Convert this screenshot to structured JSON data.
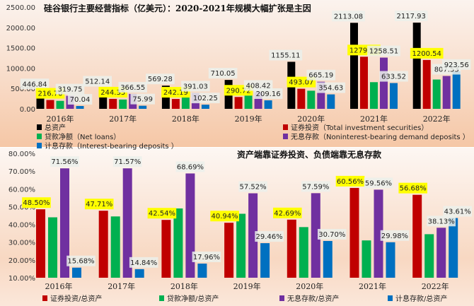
{
  "chart_data": [
    {
      "type": "bar",
      "title": "硅谷银行主要经营指标（亿美元）：2020-2021年规模大幅扩张是主因",
      "xlabel": "",
      "ylabel": "",
      "ylim": [
        0,
        2500
      ],
      "yticks": [
        "0.00",
        "500.00",
        "1000.00",
        "1500.00",
        "2000.00",
        "2500.00"
      ],
      "categories": [
        "2016年",
        "2017年",
        "2018年",
        "2019年",
        "2020年",
        "2021年",
        "2022年"
      ],
      "legend_position": "bottom",
      "series": [
        {
          "name": "总资产",
          "color": "#000000",
          "values": [
            446.84,
            512.14,
            569.28,
            710.05,
            1155.11,
            2113.08,
            2117.93
          ],
          "labels": [
            "446.84",
            "512.14",
            "569.28",
            "710.05",
            "1155.11",
            "2113.08",
            "2117.93"
          ]
        },
        {
          "name": "证券投资（Total investment securities）",
          "color": "#c00000",
          "values": [
            216.7,
            244.35,
            242.19,
            290.72,
            493.07,
            1279.59,
            1200.54
          ],
          "labels": [
            "216.70",
            "244.35",
            "242.19",
            "290.72",
            "493.07",
            "1279.59",
            "1200.54"
          ],
          "highlight": true
        },
        {
          "name": "贷款净额（Net loans）",
          "color": "#00b050",
          "values": [
            196,
            228,
            279,
            327,
            445,
            655,
            720
          ],
          "labels": null
        },
        {
          "name": "无息存款（Noninterest-bearing demand deposits ）",
          "color": "#7030a0",
          "values": [
            319.75,
            366.55,
            391.03,
            408.42,
            665.19,
            1258.51,
            807.53
          ],
          "labels": [
            "319.75",
            "366.55",
            "391.03",
            "408.42",
            "665.19",
            "1258.51",
            "807.53"
          ]
        },
        {
          "name": "计息存款（Interest-bearing deposits ）",
          "color": "#0070c0",
          "values": [
            70.04,
            75.99,
            102.25,
            209.16,
            354.63,
            633.52,
            923.56
          ],
          "labels": [
            "70.04",
            "75.99",
            "102.25",
            "209.16",
            "354.63",
            "633.52",
            "923.56"
          ]
        }
      ]
    },
    {
      "type": "bar",
      "title": "资产端靠证券投资、负债端靠无息存款",
      "xlabel": "",
      "ylabel": "",
      "ylim": [
        10,
        80
      ],
      "yticks": [
        "10.00%",
        "20.00%",
        "30.00%",
        "40.00%",
        "50.00%",
        "60.00%",
        "70.00%",
        "80.00%"
      ],
      "categories": [
        "2016年",
        "2017年",
        "2018年",
        "2019年",
        "2020年",
        "2021年",
        "2022年"
      ],
      "legend_position": "bottom",
      "series": [
        {
          "name": "证券投资/总资产",
          "color": "#c00000",
          "values": [
            48.5,
            47.71,
            42.54,
            40.94,
            42.69,
            60.56,
            56.68
          ],
          "labels": [
            "48.50%",
            "47.71%",
            "42.54%",
            "40.94%",
            "42.69%",
            "60.56%",
            "56.68%"
          ],
          "highlight": true
        },
        {
          "name": "贷款净额/总资产",
          "color": "#00b050",
          "values": [
            44.0,
            44.5,
            49.0,
            46.0,
            38.5,
            31.0,
            34.5
          ],
          "labels": null
        },
        {
          "name": "无息存款/总资产",
          "color": "#7030a0",
          "values": [
            71.56,
            71.57,
            68.69,
            57.52,
            57.59,
            59.56,
            38.13
          ],
          "labels": [
            "71.56%",
            "71.57%",
            "68.69%",
            "57.52%",
            "57.59%",
            "59.56%",
            "38.13%"
          ]
        },
        {
          "name": "计息存款/总资产",
          "color": "#0070c0",
          "values": [
            15.68,
            14.84,
            17.96,
            29.46,
            30.7,
            29.98,
            43.61
          ],
          "labels": [
            "15.68%",
            "14.84%",
            "17.96%",
            "29.46%",
            "30.70%",
            "29.98%",
            "43.61%"
          ]
        }
      ]
    }
  ]
}
